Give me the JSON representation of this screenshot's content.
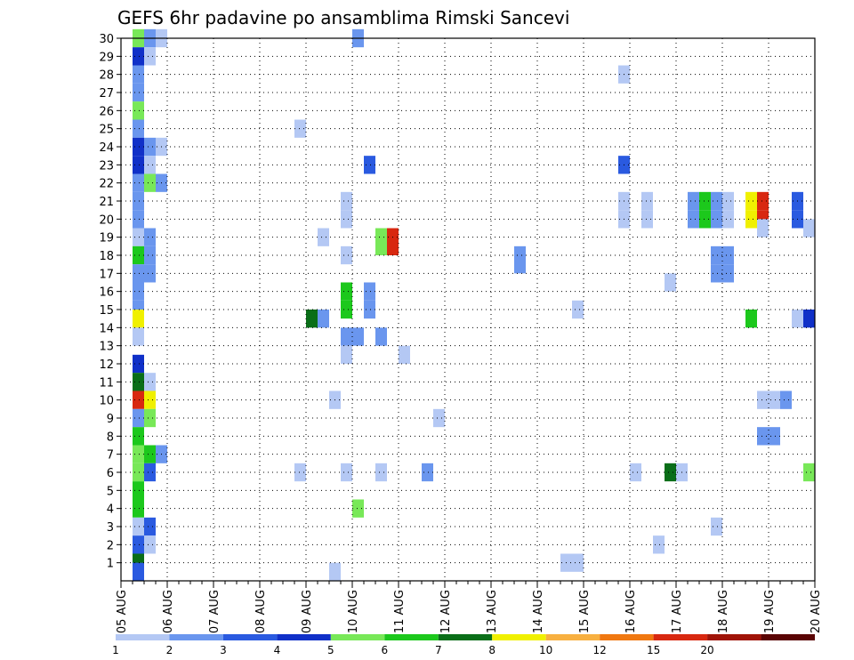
{
  "chart_data": {
    "type": "heatmap",
    "title": "GEFS 6hr padavine po ansamblima Rimski Sancevi",
    "xlabel": "",
    "ylabel": "",
    "x_ticks": [
      "05 AUG",
      "06 AUG",
      "07 AUG",
      "08 AUG",
      "09 AUG",
      "10 AUG",
      "11 AUG",
      "12 AUG",
      "13 AUG",
      "14 AUG",
      "15 AUG",
      "16 AUG",
      "17 AUG",
      "18 AUG",
      "19 AUG",
      "20 AUG"
    ],
    "y_ticks": [
      "1",
      "2",
      "3",
      "4",
      "5",
      "6",
      "7",
      "8",
      "9",
      "10",
      "11",
      "12",
      "13",
      "14",
      "15",
      "16",
      "17",
      "18",
      "19",
      "20",
      "21",
      "22",
      "23",
      "24",
      "25",
      "26",
      "27",
      "28",
      "29",
      "30"
    ],
    "x_range_days": [
      0,
      15
    ],
    "y_range_members": [
      0,
      30
    ],
    "grid": true,
    "colorbar": {
      "labels": [
        "1",
        "2",
        "3",
        "4",
        "5",
        "6",
        "7",
        "8",
        "10",
        "12",
        "15",
        "20"
      ],
      "colors": [
        "#b4c8f4",
        "#6a96ee",
        "#2a5ae0",
        "#1030c8",
        "#78e858",
        "#1cc81c",
        "#0a6e18",
        "#f0f000",
        "#f8b040",
        "#f07810",
        "#d82810",
        "#a01408",
        "#5a0404"
      ]
    },
    "units_note": "cells: x = day offset from 05 AUG 00Z (6h steps = 0.25), m = ensemble member row, c = color class index",
    "cells": [
      {
        "x": 0.25,
        "m": 30,
        "c": 4
      },
      {
        "x": 0.5,
        "m": 30,
        "c": 1
      },
      {
        "x": 0.75,
        "m": 30,
        "c": 0
      },
      {
        "x": 5,
        "m": 30,
        "c": 1
      },
      {
        "x": 0.25,
        "m": 29,
        "c": 3
      },
      {
        "x": 0.5,
        "m": 29,
        "c": 0
      },
      {
        "x": 0.25,
        "m": 28,
        "c": 1
      },
      {
        "x": 10.75,
        "m": 28,
        "c": 0
      },
      {
        "x": 0.25,
        "m": 27,
        "c": 1
      },
      {
        "x": 0.25,
        "m": 26,
        "c": 4
      },
      {
        "x": 0.25,
        "m": 25,
        "c": 1
      },
      {
        "x": 3.75,
        "m": 25,
        "c": 0
      },
      {
        "x": 0.25,
        "m": 24,
        "c": 3
      },
      {
        "x": 0.5,
        "m": 24,
        "c": 1
      },
      {
        "x": 0.75,
        "m": 24,
        "c": 0
      },
      {
        "x": 0.25,
        "m": 23,
        "c": 3
      },
      {
        "x": 0.5,
        "m": 23,
        "c": 0
      },
      {
        "x": 5.25,
        "m": 23,
        "c": 2
      },
      {
        "x": 10.75,
        "m": 23,
        "c": 2
      },
      {
        "x": 0.25,
        "m": 22,
        "c": 1
      },
      {
        "x": 0.5,
        "m": 22,
        "c": 4
      },
      {
        "x": 0.75,
        "m": 22,
        "c": 1
      },
      {
        "x": 0.25,
        "m": 21,
        "c": 1
      },
      {
        "x": 4.75,
        "m": 21,
        "c": 0
      },
      {
        "x": 10.75,
        "m": 21,
        "c": 0
      },
      {
        "x": 11.25,
        "m": 21,
        "c": 0
      },
      {
        "x": 12.25,
        "m": 21,
        "c": 1
      },
      {
        "x": 12.5,
        "m": 21,
        "c": 5
      },
      {
        "x": 12.75,
        "m": 21,
        "c": 1
      },
      {
        "x": 13,
        "m": 21,
        "c": 0
      },
      {
        "x": 13.5,
        "m": 21,
        "c": 7
      },
      {
        "x": 13.75,
        "m": 21,
        "c": 10
      },
      {
        "x": 14.5,
        "m": 21,
        "c": 2
      },
      {
        "x": 0.25,
        "m": 20,
        "c": 1
      },
      {
        "x": 4.75,
        "m": 20,
        "c": 0
      },
      {
        "x": 10.75,
        "m": 20,
        "c": 0
      },
      {
        "x": 11.25,
        "m": 20,
        "c": 0
      },
      {
        "x": 12.25,
        "m": 20,
        "c": 1
      },
      {
        "x": 12.5,
        "m": 20,
        "c": 5
      },
      {
        "x": 12.75,
        "m": 20,
        "c": 1
      },
      {
        "x": 13,
        "m": 20,
        "c": 0
      },
      {
        "x": 13.5,
        "m": 20,
        "c": 7
      },
      {
        "x": 13.75,
        "m": 20,
        "c": 10
      },
      {
        "x": 14.5,
        "m": 20,
        "c": 2
      },
      {
        "x": 13.75,
        "m": 19.5,
        "c": 0
      },
      {
        "x": 14.75,
        "m": 19.5,
        "c": 0
      },
      {
        "x": 0.25,
        "m": 19,
        "c": 0
      },
      {
        "x": 0.5,
        "m": 19,
        "c": 1
      },
      {
        "x": 4.25,
        "m": 19,
        "c": 0
      },
      {
        "x": 5.5,
        "m": 19,
        "c": 4
      },
      {
        "x": 5.75,
        "m": 19,
        "c": 10
      },
      {
        "x": 0.25,
        "m": 18,
        "c": 5
      },
      {
        "x": 0.5,
        "m": 18,
        "c": 1
      },
      {
        "x": 4.75,
        "m": 18,
        "c": 0
      },
      {
        "x": 5.5,
        "m": 18.5,
        "c": 4
      },
      {
        "x": 5.75,
        "m": 18.5,
        "c": 10
      },
      {
        "x": 8.5,
        "m": 18,
        "c": 1
      },
      {
        "x": 12.75,
        "m": 18,
        "c": 1
      },
      {
        "x": 13,
        "m": 18,
        "c": 1
      },
      {
        "x": 0.25,
        "m": 17,
        "c": 1
      },
      {
        "x": 0.5,
        "m": 17,
        "c": 1
      },
      {
        "x": 8.5,
        "m": 17.5,
        "c": 1
      },
      {
        "x": 12.75,
        "m": 17,
        "c": 1
      },
      {
        "x": 13,
        "m": 17,
        "c": 1
      },
      {
        "x": 11.75,
        "m": 16.5,
        "c": 0
      },
      {
        "x": 0.25,
        "m": 16,
        "c": 1
      },
      {
        "x": 4.75,
        "m": 16,
        "c": 5
      },
      {
        "x": 5.25,
        "m": 16,
        "c": 1
      },
      {
        "x": 0.25,
        "m": 15,
        "c": 1
      },
      {
        "x": 4.75,
        "m": 15,
        "c": 5
      },
      {
        "x": 5.25,
        "m": 15,
        "c": 1
      },
      {
        "x": 9.75,
        "m": 15,
        "c": 0
      },
      {
        "x": 0.25,
        "m": 14.5,
        "c": 7
      },
      {
        "x": 4,
        "m": 14.5,
        "c": 6
      },
      {
        "x": 4.25,
        "m": 14.5,
        "c": 1
      },
      {
        "x": 13.5,
        "m": 14.5,
        "c": 5
      },
      {
        "x": 14.5,
        "m": 14.5,
        "c": 0
      },
      {
        "x": 14.75,
        "m": 14.5,
        "c": 3
      },
      {
        "x": 0.25,
        "m": 13.5,
        "c": 0
      },
      {
        "x": 4.75,
        "m": 13.5,
        "c": 1
      },
      {
        "x": 5,
        "m": 13.5,
        "c": 1
      },
      {
        "x": 5.5,
        "m": 13.5,
        "c": 1
      },
      {
        "x": 0.25,
        "m": 12,
        "c": 3
      },
      {
        "x": 4.75,
        "m": 12.5,
        "c": 0
      },
      {
        "x": 6,
        "m": 12.5,
        "c": 0
      },
      {
        "x": 0.25,
        "m": 11,
        "c": 6
      },
      {
        "x": 0.5,
        "m": 11,
        "c": 0
      },
      {
        "x": 0.25,
        "m": 10,
        "c": 10
      },
      {
        "x": 0.5,
        "m": 10,
        "c": 7
      },
      {
        "x": 4.5,
        "m": 10,
        "c": 0
      },
      {
        "x": 13.75,
        "m": 10,
        "c": 0
      },
      {
        "x": 14,
        "m": 10,
        "c": 0
      },
      {
        "x": 14.25,
        "m": 10,
        "c": 1
      },
      {
        "x": 0.25,
        "m": 9,
        "c": 1
      },
      {
        "x": 0.5,
        "m": 9,
        "c": 4
      },
      {
        "x": 6.75,
        "m": 9,
        "c": 0
      },
      {
        "x": 0.25,
        "m": 8,
        "c": 5
      },
      {
        "x": 13.75,
        "m": 8,
        "c": 1
      },
      {
        "x": 14,
        "m": 8,
        "c": 1
      },
      {
        "x": 0.25,
        "m": 7,
        "c": 4
      },
      {
        "x": 0.5,
        "m": 7,
        "c": 5
      },
      {
        "x": 0.75,
        "m": 7,
        "c": 1
      },
      {
        "x": 0.25,
        "m": 6,
        "c": 4
      },
      {
        "x": 0.5,
        "m": 6,
        "c": 2
      },
      {
        "x": 3.75,
        "m": 6,
        "c": 0
      },
      {
        "x": 4.75,
        "m": 6,
        "c": 0
      },
      {
        "x": 5.5,
        "m": 6,
        "c": 0
      },
      {
        "x": 6.5,
        "m": 6,
        "c": 1
      },
      {
        "x": 11,
        "m": 6,
        "c": 0
      },
      {
        "x": 11.75,
        "m": 6,
        "c": 6
      },
      {
        "x": 12,
        "m": 6,
        "c": 0
      },
      {
        "x": 14.75,
        "m": 6,
        "c": 4
      },
      {
        "x": 0.25,
        "m": 5,
        "c": 5
      },
      {
        "x": 0.25,
        "m": 4,
        "c": 5
      },
      {
        "x": 5,
        "m": 4,
        "c": 4
      },
      {
        "x": 0.25,
        "m": 3,
        "c": 0
      },
      {
        "x": 0.5,
        "m": 3,
        "c": 2
      },
      {
        "x": 12.75,
        "m": 3,
        "c": 0
      },
      {
        "x": 0.25,
        "m": 2,
        "c": 2
      },
      {
        "x": 0.5,
        "m": 2,
        "c": 0
      },
      {
        "x": 11.5,
        "m": 2,
        "c": 0
      },
      {
        "x": 0.25,
        "m": 1,
        "c": 6
      },
      {
        "x": 9.5,
        "m": 1,
        "c": 0
      },
      {
        "x": 9.75,
        "m": 1,
        "c": 0
      },
      {
        "x": 0.25,
        "m": 0.5,
        "c": 2
      },
      {
        "x": 4.5,
        "m": 0.5,
        "c": 0
      }
    ]
  }
}
